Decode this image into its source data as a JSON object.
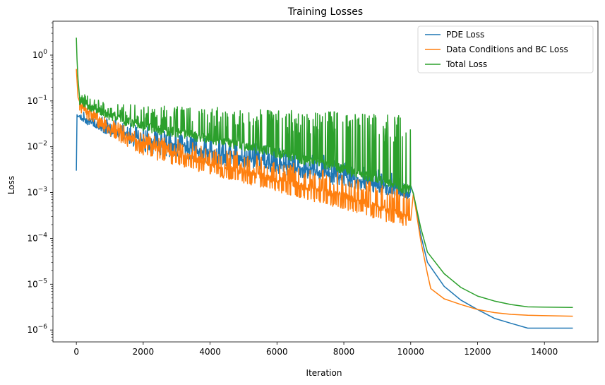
{
  "chart_data": {
    "type": "line",
    "title": "Training Losses",
    "xlabel": "Iteration",
    "ylabel": "Loss",
    "yscale": "log",
    "xlim": [
      -700,
      15600
    ],
    "ylim": [
      5.5e-07,
      5.5
    ],
    "x_ticks": [
      0,
      2000,
      4000,
      6000,
      8000,
      10000,
      12000,
      14000
    ],
    "x_tick_labels": [
      "0",
      "2000",
      "4000",
      "6000",
      "8000",
      "10000",
      "12000",
      "14000"
    ],
    "y_ticks": [
      1e-06,
      1e-05,
      0.0001,
      0.001,
      0.01,
      0.1,
      1.0
    ],
    "y_tick_labels": [
      [
        "10",
        "−6"
      ],
      [
        "10",
        "−5"
      ],
      [
        "10",
        "−4"
      ],
      [
        "10",
        "−3"
      ],
      [
        "10",
        "−2"
      ],
      [
        "10",
        "−1"
      ],
      [
        "10",
        "0"
      ]
    ],
    "grid": false,
    "legend_position": "top-right",
    "series": [
      {
        "name": "PDE Loss",
        "color": "#1f77b4",
        "envelope": "values oscillate between a lower and upper envelope from iteration 100 to 10000",
        "points": [
          [
            0,
            0.003
          ],
          [
            20,
            0.05
          ],
          [
            50,
            0.045
          ],
          [
            100,
            0.048
          ],
          [
            200,
            0.036
          ],
          [
            400,
            0.036
          ],
          [
            1000,
            0.022
          ],
          [
            2000,
            0.014
          ],
          [
            4000,
            0.0075
          ],
          [
            6000,
            0.0042
          ],
          [
            8000,
            0.0022
          ],
          [
            10000,
            0.0009
          ],
          [
            10080,
            0.00095
          ],
          [
            10300,
            0.00012
          ],
          [
            10500,
            3e-05
          ],
          [
            11000,
            9e-06
          ],
          [
            11500,
            4.5e-06
          ],
          [
            12000,
            2.8e-06
          ],
          [
            12500,
            1.8e-06
          ],
          [
            13000,
            1.4e-06
          ],
          [
            13500,
            1.1e-06
          ],
          [
            13700,
            1.1e-06
          ],
          [
            14850,
            1.1e-06
          ]
        ],
        "upper": [
          [
            100,
            0.055
          ],
          [
            1000,
            0.035
          ],
          [
            2000,
            0.025
          ],
          [
            4000,
            0.015
          ],
          [
            6000,
            0.009
          ],
          [
            8000,
            0.0048
          ],
          [
            10000,
            0.0018
          ]
        ],
        "lower": [
          [
            100,
            0.042
          ],
          [
            1000,
            0.018
          ],
          [
            2000,
            0.008
          ],
          [
            4000,
            0.0045
          ],
          [
            6000,
            0.0028
          ],
          [
            8000,
            0.0014
          ],
          [
            10000,
            0.0007
          ]
        ]
      },
      {
        "name": "Data Conditions and BC Loss",
        "color": "#ff7f0e",
        "points": [
          [
            0,
            0.5
          ],
          [
            50,
            0.12
          ],
          [
            100,
            0.095
          ],
          [
            300,
            0.06
          ],
          [
            1000,
            0.025
          ],
          [
            2000,
            0.011
          ],
          [
            4000,
            0.0045
          ],
          [
            6000,
            0.0019
          ],
          [
            8000,
            0.00085
          ],
          [
            10000,
            0.00028
          ],
          [
            10080,
            0.00095
          ],
          [
            10300,
            9e-05
          ],
          [
            10500,
            1.7e-05
          ],
          [
            10600,
            8e-06
          ],
          [
            11000,
            4.8e-06
          ],
          [
            11500,
            3.6e-06
          ],
          [
            12000,
            2.8e-06
          ],
          [
            12500,
            2.4e-06
          ],
          [
            13000,
            2.2e-06
          ],
          [
            13500,
            2.1e-06
          ],
          [
            14850,
            2e-06
          ]
        ],
        "upper": [
          [
            100,
            0.1
          ],
          [
            1000,
            0.035
          ],
          [
            2000,
            0.018
          ],
          [
            4000,
            0.009
          ],
          [
            6000,
            0.0045
          ],
          [
            8000,
            0.0023
          ],
          [
            10000,
            0.0009
          ]
        ],
        "lower": [
          [
            100,
            0.055
          ],
          [
            1000,
            0.018
          ],
          [
            2000,
            0.0065
          ],
          [
            4000,
            0.0026
          ],
          [
            6000,
            0.0011
          ],
          [
            8000,
            0.00045
          ],
          [
            10000,
            0.00017
          ]
        ]
      },
      {
        "name": "Total Loss",
        "color": "#2ca02c",
        "points": [
          [
            0,
            2.4
          ],
          [
            20,
            0.8
          ],
          [
            50,
            0.3
          ],
          [
            100,
            0.11
          ],
          [
            300,
            0.08
          ],
          [
            1000,
            0.05
          ],
          [
            2000,
            0.03
          ],
          [
            4000,
            0.016
          ],
          [
            6000,
            0.008
          ],
          [
            8000,
            0.0035
          ],
          [
            10000,
            0.0012
          ],
          [
            10080,
            0.00095
          ],
          [
            10300,
            0.00017
          ],
          [
            10500,
            5e-05
          ],
          [
            11000,
            1.7e-05
          ],
          [
            11500,
            8.5e-06
          ],
          [
            12000,
            5.5e-06
          ],
          [
            12500,
            4.3e-06
          ],
          [
            13000,
            3.6e-06
          ],
          [
            13500,
            3.2e-06
          ],
          [
            14850,
            3.1e-06
          ]
        ],
        "upper": [
          [
            100,
            0.13
          ],
          [
            1000,
            0.075
          ],
          [
            2000,
            0.07
          ],
          [
            4000,
            0.065
          ],
          [
            6000,
            0.055
          ],
          [
            8000,
            0.05
          ],
          [
            10000,
            0.04
          ]
        ],
        "lower": [
          [
            100,
            0.085
          ],
          [
            1000,
            0.04
          ],
          [
            2000,
            0.022
          ],
          [
            4000,
            0.012
          ],
          [
            6000,
            0.006
          ],
          [
            8000,
            0.0026
          ],
          [
            10000,
            0.0009
          ]
        ]
      }
    ]
  }
}
